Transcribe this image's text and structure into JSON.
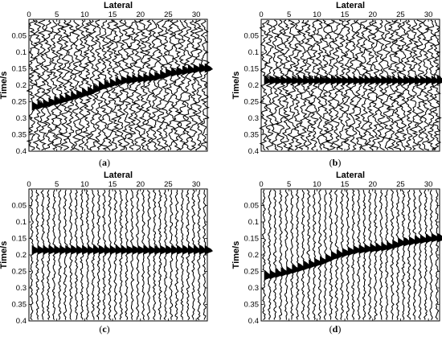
{
  "chart_data": [
    {
      "panel": "(a)",
      "type": "seismic-wiggle",
      "xlabel": "Lateral",
      "ylabel": "Time/s",
      "xlim": [
        0,
        32
      ],
      "ylim": [
        0,
        0.4
      ],
      "y_reversed": true,
      "x_ticks": [
        0,
        5,
        10,
        15,
        20,
        25,
        30
      ],
      "y_ticks": [
        0.05,
        0.1,
        0.15,
        0.2,
        0.25,
        0.3,
        0.35,
        0.4
      ],
      "noise": "strong",
      "event": {
        "trace": [
          1,
          3,
          5,
          7,
          9,
          11,
          13,
          15,
          17,
          19,
          21,
          23,
          25,
          27,
          29,
          31
        ],
        "time": [
          0.265,
          0.258,
          0.25,
          0.24,
          0.23,
          0.22,
          0.205,
          0.195,
          0.187,
          0.183,
          0.18,
          0.175,
          0.165,
          0.16,
          0.155,
          0.15
        ]
      }
    },
    {
      "panel": "(b)",
      "type": "seismic-wiggle",
      "xlabel": "Lateral",
      "ylabel": "Time/s",
      "xlim": [
        0,
        32
      ],
      "ylim": [
        0,
        0.4
      ],
      "y_reversed": true,
      "x_ticks": [
        0,
        5,
        10,
        15,
        20,
        25,
        30
      ],
      "y_ticks": [
        0.05,
        0.1,
        0.15,
        0.2,
        0.25,
        0.3,
        0.35,
        0.4
      ],
      "noise": "strong",
      "event": {
        "trace": [
          1,
          31
        ],
        "time": [
          0.187,
          0.187
        ]
      }
    },
    {
      "panel": "(c)",
      "type": "seismic-wiggle",
      "xlabel": "Lateral",
      "ylabel": "Time/s",
      "xlim": [
        0,
        32
      ],
      "ylim": [
        0,
        0.4
      ],
      "y_reversed": true,
      "x_ticks": [
        0,
        5,
        10,
        15,
        20,
        25,
        30
      ],
      "y_ticks": [
        0.05,
        0.1,
        0.15,
        0.2,
        0.25,
        0.3,
        0.35,
        0.4
      ],
      "noise": "weak",
      "event": {
        "trace": [
          1,
          31
        ],
        "time": [
          0.187,
          0.187
        ]
      }
    },
    {
      "panel": "(d)",
      "type": "seismic-wiggle",
      "xlabel": "Lateral",
      "ylabel": "Time/s",
      "xlim": [
        0,
        32
      ],
      "ylim": [
        0,
        0.4
      ],
      "y_reversed": true,
      "x_ticks": [
        0,
        5,
        10,
        15,
        20,
        25,
        30
      ],
      "y_ticks": [
        0.05,
        0.1,
        0.15,
        0.2,
        0.25,
        0.3,
        0.35,
        0.4
      ],
      "noise": "weak",
      "event": {
        "trace": [
          1,
          3,
          5,
          7,
          9,
          11,
          13,
          15,
          17,
          19,
          21,
          23,
          25,
          27,
          29,
          31
        ],
        "time": [
          0.265,
          0.258,
          0.25,
          0.24,
          0.23,
          0.22,
          0.205,
          0.195,
          0.187,
          0.183,
          0.18,
          0.175,
          0.165,
          0.16,
          0.155,
          0.15
        ]
      }
    }
  ],
  "panel_captions": [
    {
      "open": "(",
      "letter": "a",
      "close": ")"
    },
    {
      "open": "(",
      "letter": "b",
      "close": ")"
    },
    {
      "open": "(",
      "letter": "c",
      "close": ")"
    },
    {
      "open": "(",
      "letter": "d",
      "close": ")"
    }
  ],
  "trace_count": 32,
  "trace_color": "#000000",
  "fill_color": "#000000"
}
